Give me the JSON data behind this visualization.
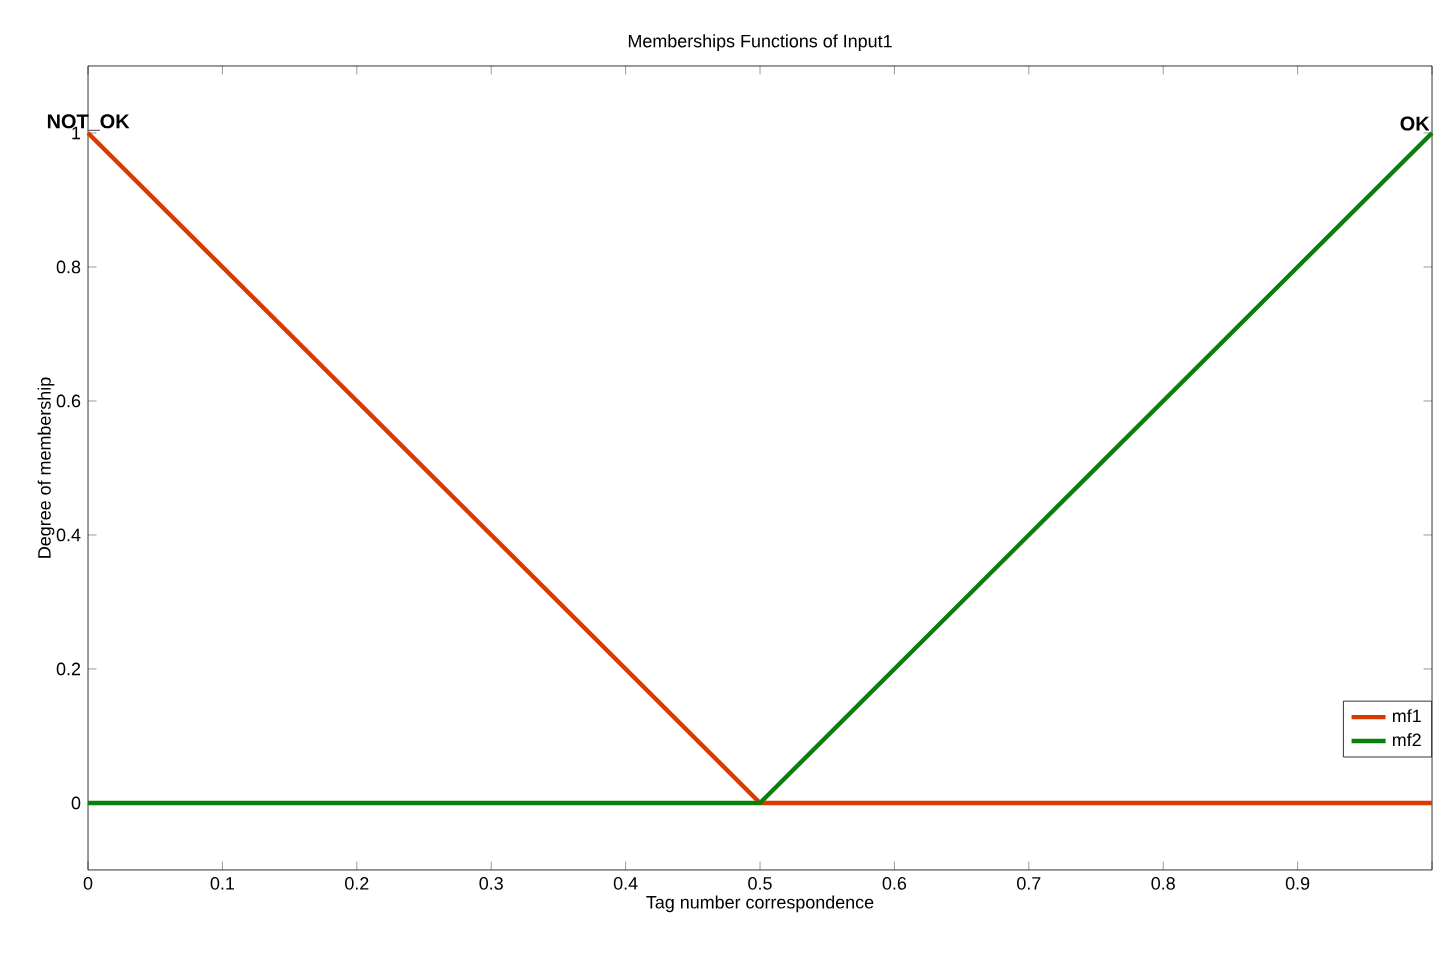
{
  "chart_data": {
    "type": "line",
    "title": "Memberships Functions of Input1",
    "xlabel": "Tag number correspondence",
    "ylabel": "Degree of membership",
    "xlim": [
      0,
      1
    ],
    "ylim": [
      -0.1,
      1.1
    ],
    "xticks": [
      0,
      0.1,
      0.2,
      0.3,
      0.4,
      0.5,
      0.6,
      0.7,
      0.8,
      0.9,
      {
        "value": 1,
        "label": null
      }
    ],
    "yticks": [
      0,
      0.2,
      0.4,
      0.6,
      0.8,
      1
    ],
    "series": [
      {
        "name": "mf1",
        "color": "#d93a00",
        "x": [
          0,
          0.5,
          1
        ],
        "values": [
          1,
          0,
          0
        ]
      },
      {
        "name": "mf2",
        "color": "#0a800a",
        "x": [
          0,
          0.5,
          1
        ],
        "values": [
          0,
          0,
          1
        ]
      }
    ],
    "annotations": [
      {
        "text": "NOT_OK",
        "x": 0,
        "y": 1
      },
      {
        "text": "OK",
        "x": 1,
        "y": 1
      }
    ],
    "legend": "bottom right",
    "grid": false,
    "line_style": "solid",
    "marker": "none"
  }
}
